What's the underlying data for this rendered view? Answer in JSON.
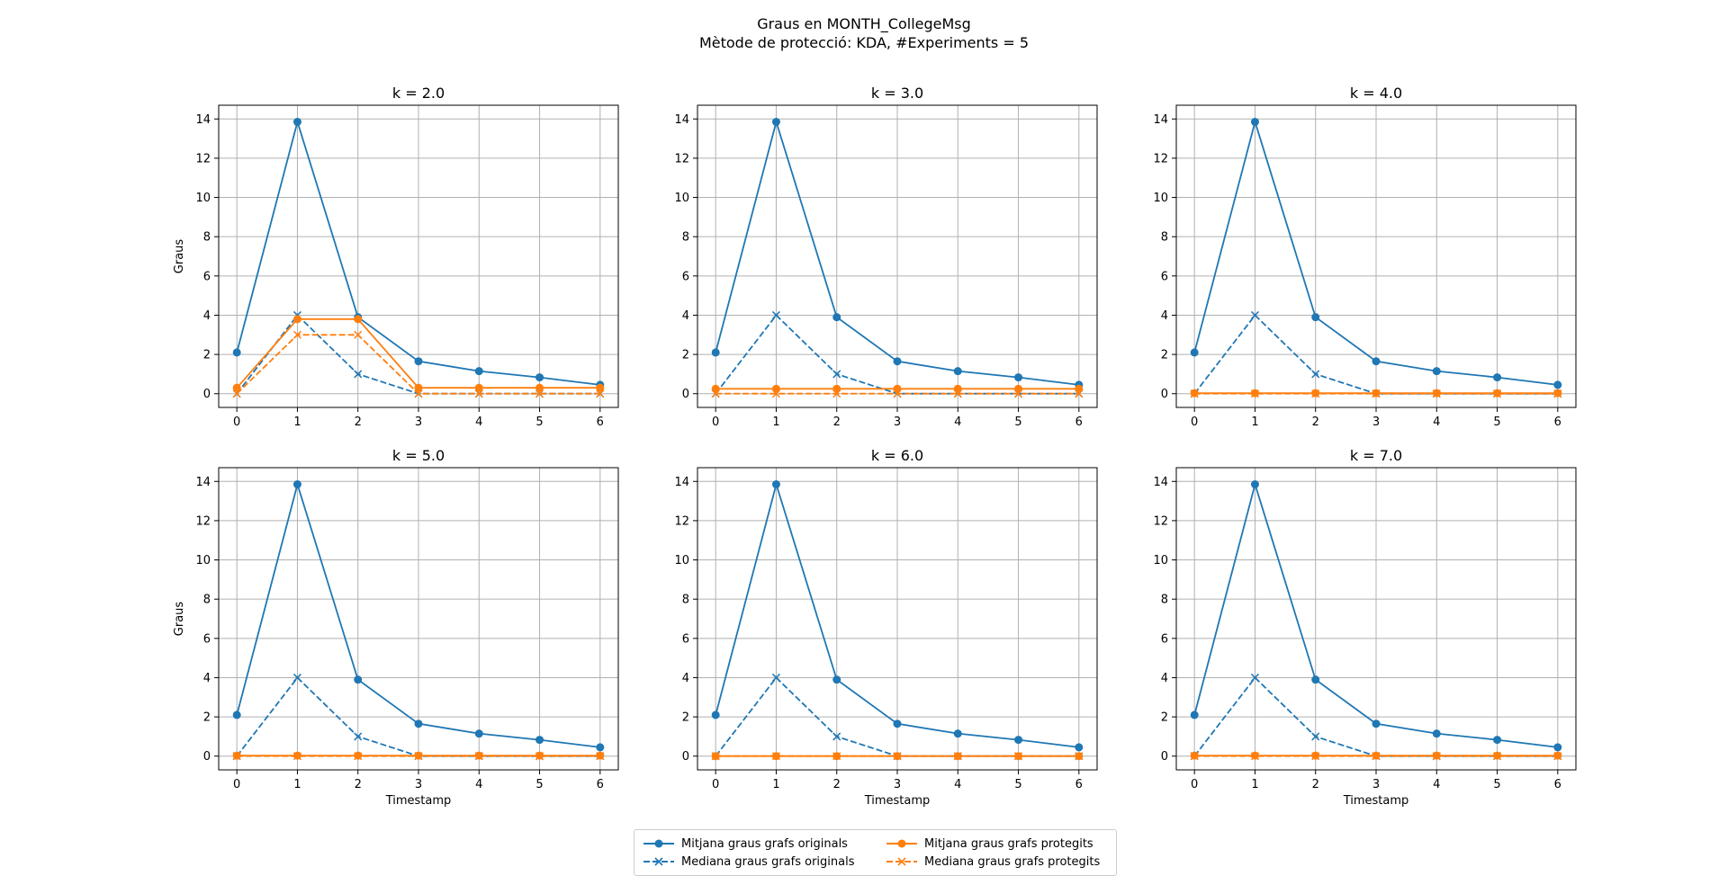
{
  "figure": {
    "title_line1": "Graus en MONTH_CollegeMsg",
    "title_line2": "Mètode de protecció: KDA, #Experiments = 5"
  },
  "colors": {
    "originals": "#1f77b4",
    "protegits": "#ff7f0e"
  },
  "legend": [
    {
      "label": "Mitjana graus grafs originals",
      "series": "mean_orig",
      "color": "#1f77b4",
      "style": "solid",
      "marker": "circle"
    },
    {
      "label": "Mediana graus grafs originals",
      "series": "median_orig",
      "color": "#1f77b4",
      "style": "dashed",
      "marker": "x"
    },
    {
      "label": "Mitjana graus grafs protegits",
      "series": "mean_prot",
      "color": "#ff7f0e",
      "style": "solid",
      "marker": "circle"
    },
    {
      "label": "Mediana graus grafs protegits",
      "series": "median_prot",
      "color": "#ff7f0e",
      "style": "dashed",
      "marker": "x"
    }
  ],
  "chart_data": [
    {
      "type": "line",
      "title": "k = 2.0",
      "xlabel": "",
      "ylabel": "Graus",
      "x": [
        0,
        1,
        2,
        3,
        4,
        5,
        6
      ],
      "ylim": [
        -0.7,
        14.7
      ],
      "yticks": [
        0,
        2,
        4,
        6,
        8,
        10,
        12,
        14
      ],
      "grid": true,
      "series": [
        {
          "name": "Mitjana graus grafs originals",
          "values": [
            2.1,
            13.85,
            3.9,
            1.65,
            1.15,
            0.83,
            0.45
          ]
        },
        {
          "name": "Mediana graus grafs originals",
          "values": [
            0,
            4,
            1,
            0,
            0,
            0,
            0
          ]
        },
        {
          "name": "Mitjana graus grafs protegits",
          "values": [
            0.3,
            3.8,
            3.8,
            0.3,
            0.3,
            0.3,
            0.3
          ]
        },
        {
          "name": "Mediana graus grafs protegits",
          "values": [
            0,
            3,
            3,
            0,
            0,
            0,
            0
          ]
        }
      ]
    },
    {
      "type": "line",
      "title": "k = 3.0",
      "xlabel": "",
      "ylabel": "",
      "x": [
        0,
        1,
        2,
        3,
        4,
        5,
        6
      ],
      "ylim": [
        -0.7,
        14.7
      ],
      "yticks": [
        0,
        2,
        4,
        6,
        8,
        10,
        12,
        14
      ],
      "grid": true,
      "series": [
        {
          "name": "Mitjana graus grafs originals",
          "values": [
            2.1,
            13.85,
            3.9,
            1.65,
            1.15,
            0.83,
            0.45
          ]
        },
        {
          "name": "Mediana graus grafs originals",
          "values": [
            0,
            4,
            1,
            0,
            0,
            0,
            0
          ]
        },
        {
          "name": "Mitjana graus grafs protegits",
          "values": [
            0.25,
            0.25,
            0.25,
            0.25,
            0.25,
            0.25,
            0.25
          ]
        },
        {
          "name": "Mediana graus grafs protegits",
          "values": [
            0,
            0,
            0,
            0,
            0,
            0,
            0
          ]
        }
      ]
    },
    {
      "type": "line",
      "title": "k = 4.0",
      "xlabel": "",
      "ylabel": "",
      "x": [
        0,
        1,
        2,
        3,
        4,
        5,
        6
      ],
      "ylim": [
        -0.7,
        14.7
      ],
      "yticks": [
        0,
        2,
        4,
        6,
        8,
        10,
        12,
        14
      ],
      "grid": true,
      "series": [
        {
          "name": "Mitjana graus grafs originals",
          "values": [
            2.1,
            13.85,
            3.9,
            1.65,
            1.15,
            0.83,
            0.45
          ]
        },
        {
          "name": "Mediana graus grafs originals",
          "values": [
            0,
            4,
            1,
            0,
            0,
            0,
            0
          ]
        },
        {
          "name": "Mitjana graus grafs protegits",
          "values": [
            0.03,
            0.03,
            0.03,
            0.03,
            0.03,
            0.03,
            0.03
          ]
        },
        {
          "name": "Mediana graus grafs protegits",
          "values": [
            0,
            0,
            0,
            0,
            0,
            0,
            0
          ]
        }
      ]
    },
    {
      "type": "line",
      "title": "k = 5.0",
      "xlabel": "Timestamp",
      "ylabel": "Graus",
      "x": [
        0,
        1,
        2,
        3,
        4,
        5,
        6
      ],
      "ylim": [
        -0.7,
        14.7
      ],
      "yticks": [
        0,
        2,
        4,
        6,
        8,
        10,
        12,
        14
      ],
      "grid": true,
      "series": [
        {
          "name": "Mitjana graus grafs originals",
          "values": [
            2.1,
            13.85,
            3.9,
            1.65,
            1.15,
            0.83,
            0.45
          ]
        },
        {
          "name": "Mediana graus grafs originals",
          "values": [
            0,
            4,
            1,
            0,
            0,
            0,
            0
          ]
        },
        {
          "name": "Mitjana graus grafs protegits",
          "values": [
            0.03,
            0.03,
            0.03,
            0.03,
            0.03,
            0.03,
            0.03
          ]
        },
        {
          "name": "Mediana graus grafs protegits",
          "values": [
            0,
            0,
            0,
            0,
            0,
            0,
            0
          ]
        }
      ]
    },
    {
      "type": "line",
      "title": "k = 6.0",
      "xlabel": "Timestamp",
      "ylabel": "",
      "x": [
        0,
        1,
        2,
        3,
        4,
        5,
        6
      ],
      "ylim": [
        -0.7,
        14.7
      ],
      "yticks": [
        0,
        2,
        4,
        6,
        8,
        10,
        12,
        14
      ],
      "grid": true,
      "series": [
        {
          "name": "Mitjana graus grafs originals",
          "values": [
            2.1,
            13.85,
            3.9,
            1.65,
            1.15,
            0.83,
            0.45
          ]
        },
        {
          "name": "Mediana graus grafs originals",
          "values": [
            0,
            4,
            1,
            0,
            0,
            0,
            0
          ]
        },
        {
          "name": "Mitjana graus grafs protegits",
          "values": [
            0,
            0,
            0,
            0,
            0,
            0,
            0
          ]
        },
        {
          "name": "Mediana graus grafs protegits",
          "values": [
            0,
            0,
            0,
            0,
            0,
            0,
            0
          ]
        }
      ]
    },
    {
      "type": "line",
      "title": "k = 7.0",
      "xlabel": "Timestamp",
      "ylabel": "",
      "x": [
        0,
        1,
        2,
        3,
        4,
        5,
        6
      ],
      "ylim": [
        -0.7,
        14.7
      ],
      "yticks": [
        0,
        2,
        4,
        6,
        8,
        10,
        12,
        14
      ],
      "grid": true,
      "series": [
        {
          "name": "Mitjana graus grafs originals",
          "values": [
            2.1,
            13.85,
            3.9,
            1.65,
            1.15,
            0.83,
            0.45
          ]
        },
        {
          "name": "Mediana graus grafs originals",
          "values": [
            0,
            4,
            1,
            0,
            0,
            0,
            0
          ]
        },
        {
          "name": "Mitjana graus grafs protegits",
          "values": [
            0.03,
            0.03,
            0.03,
            0.03,
            0.03,
            0.03,
            0.03
          ]
        },
        {
          "name": "Mediana graus grafs protegits",
          "values": [
            0,
            0,
            0,
            0,
            0,
            0,
            0
          ]
        }
      ]
    }
  ]
}
